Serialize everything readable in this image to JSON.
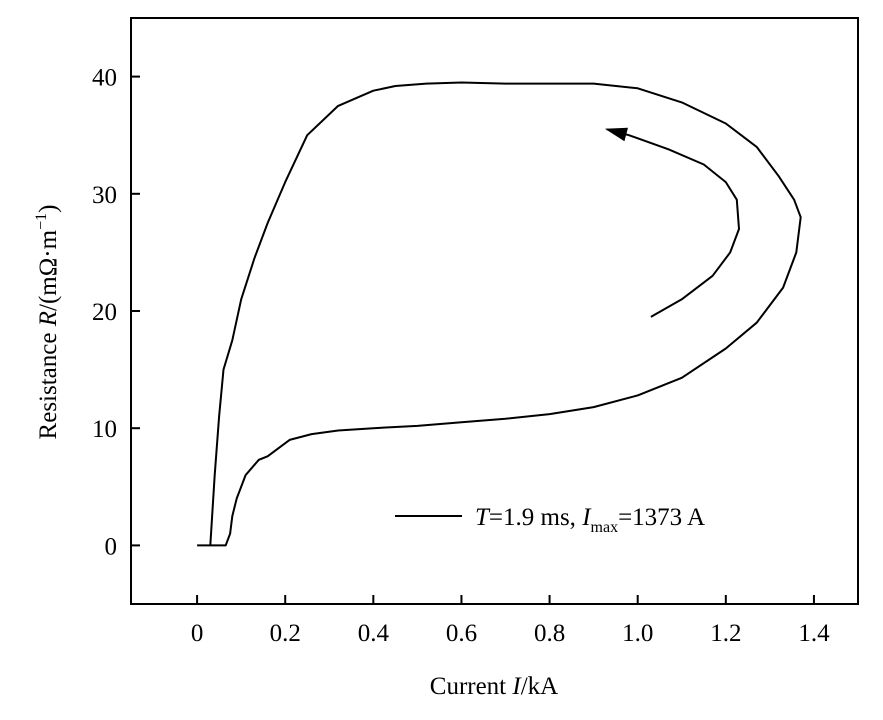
{
  "chart_data": {
    "type": "line",
    "xlabel": {
      "prefix": "Current ",
      "var": "I",
      "suffix": "/kA"
    },
    "ylabel": {
      "prefix": "Resistance ",
      "var": "R",
      "suffix": "/(mΩ·m",
      "sup": "−1",
      "close": ")"
    },
    "xlim": [
      -0.15,
      1.5
    ],
    "ylim": [
      -5,
      45
    ],
    "xticks": [
      "0",
      "0.2",
      "0.4",
      "0.6",
      "0.8",
      "1.0",
      "1.2",
      "1.4"
    ],
    "yticks": [
      "0",
      "10",
      "20",
      "30",
      "40"
    ],
    "grid": false,
    "legend": {
      "placement": "bottom-right",
      "var1": "T",
      "text1": "=1.9 ms, ",
      "var2": "I",
      "sub2": "max",
      "text2": "=1373 A"
    },
    "series": [
      {
        "x": [
          0.0,
          0.03,
          0.035,
          0.04,
          0.05,
          0.06,
          0.08,
          0.1,
          0.13,
          0.16,
          0.2,
          0.25,
          0.32,
          0.4,
          0.45,
          0.52,
          0.6,
          0.7,
          0.8,
          0.9,
          1.0,
          1.1,
          1.2,
          1.27,
          1.32,
          1.355,
          1.37,
          1.36,
          1.33,
          1.27,
          1.2,
          1.1,
          1.0,
          0.9,
          0.8,
          0.7,
          0.6,
          0.5,
          0.4,
          0.32,
          0.26,
          0.21,
          0.16,
          0.14,
          0.11,
          0.09,
          0.08,
          0.075,
          0.07,
          0.065,
          0.0
        ],
        "y": [
          0,
          0,
          3,
          6,
          11,
          15,
          17.5,
          21,
          24.5,
          27.5,
          31,
          35,
          37.5,
          38.8,
          39.2,
          39.4,
          39.5,
          39.4,
          39.4,
          39.4,
          39.0,
          37.8,
          36.0,
          34.0,
          31.5,
          29.5,
          28.0,
          25.0,
          22.0,
          19.0,
          16.8,
          14.3,
          12.8,
          11.8,
          11.2,
          10.8,
          10.5,
          10.2,
          10.0,
          9.8,
          9.5,
          9.0,
          7.6,
          7.3,
          6.0,
          4.0,
          2.5,
          1.0,
          0.5,
          0,
          0
        ]
      }
    ],
    "arrow": {
      "x": [
        1.03,
        1.1,
        1.17,
        1.21,
        1.23,
        1.225,
        1.2,
        1.15,
        1.07,
        0.98,
        0.93
      ],
      "y": [
        19.5,
        21.0,
        23.0,
        25.0,
        27.0,
        29.5,
        31.0,
        32.5,
        33.8,
        35.0,
        35.5
      ]
    }
  }
}
